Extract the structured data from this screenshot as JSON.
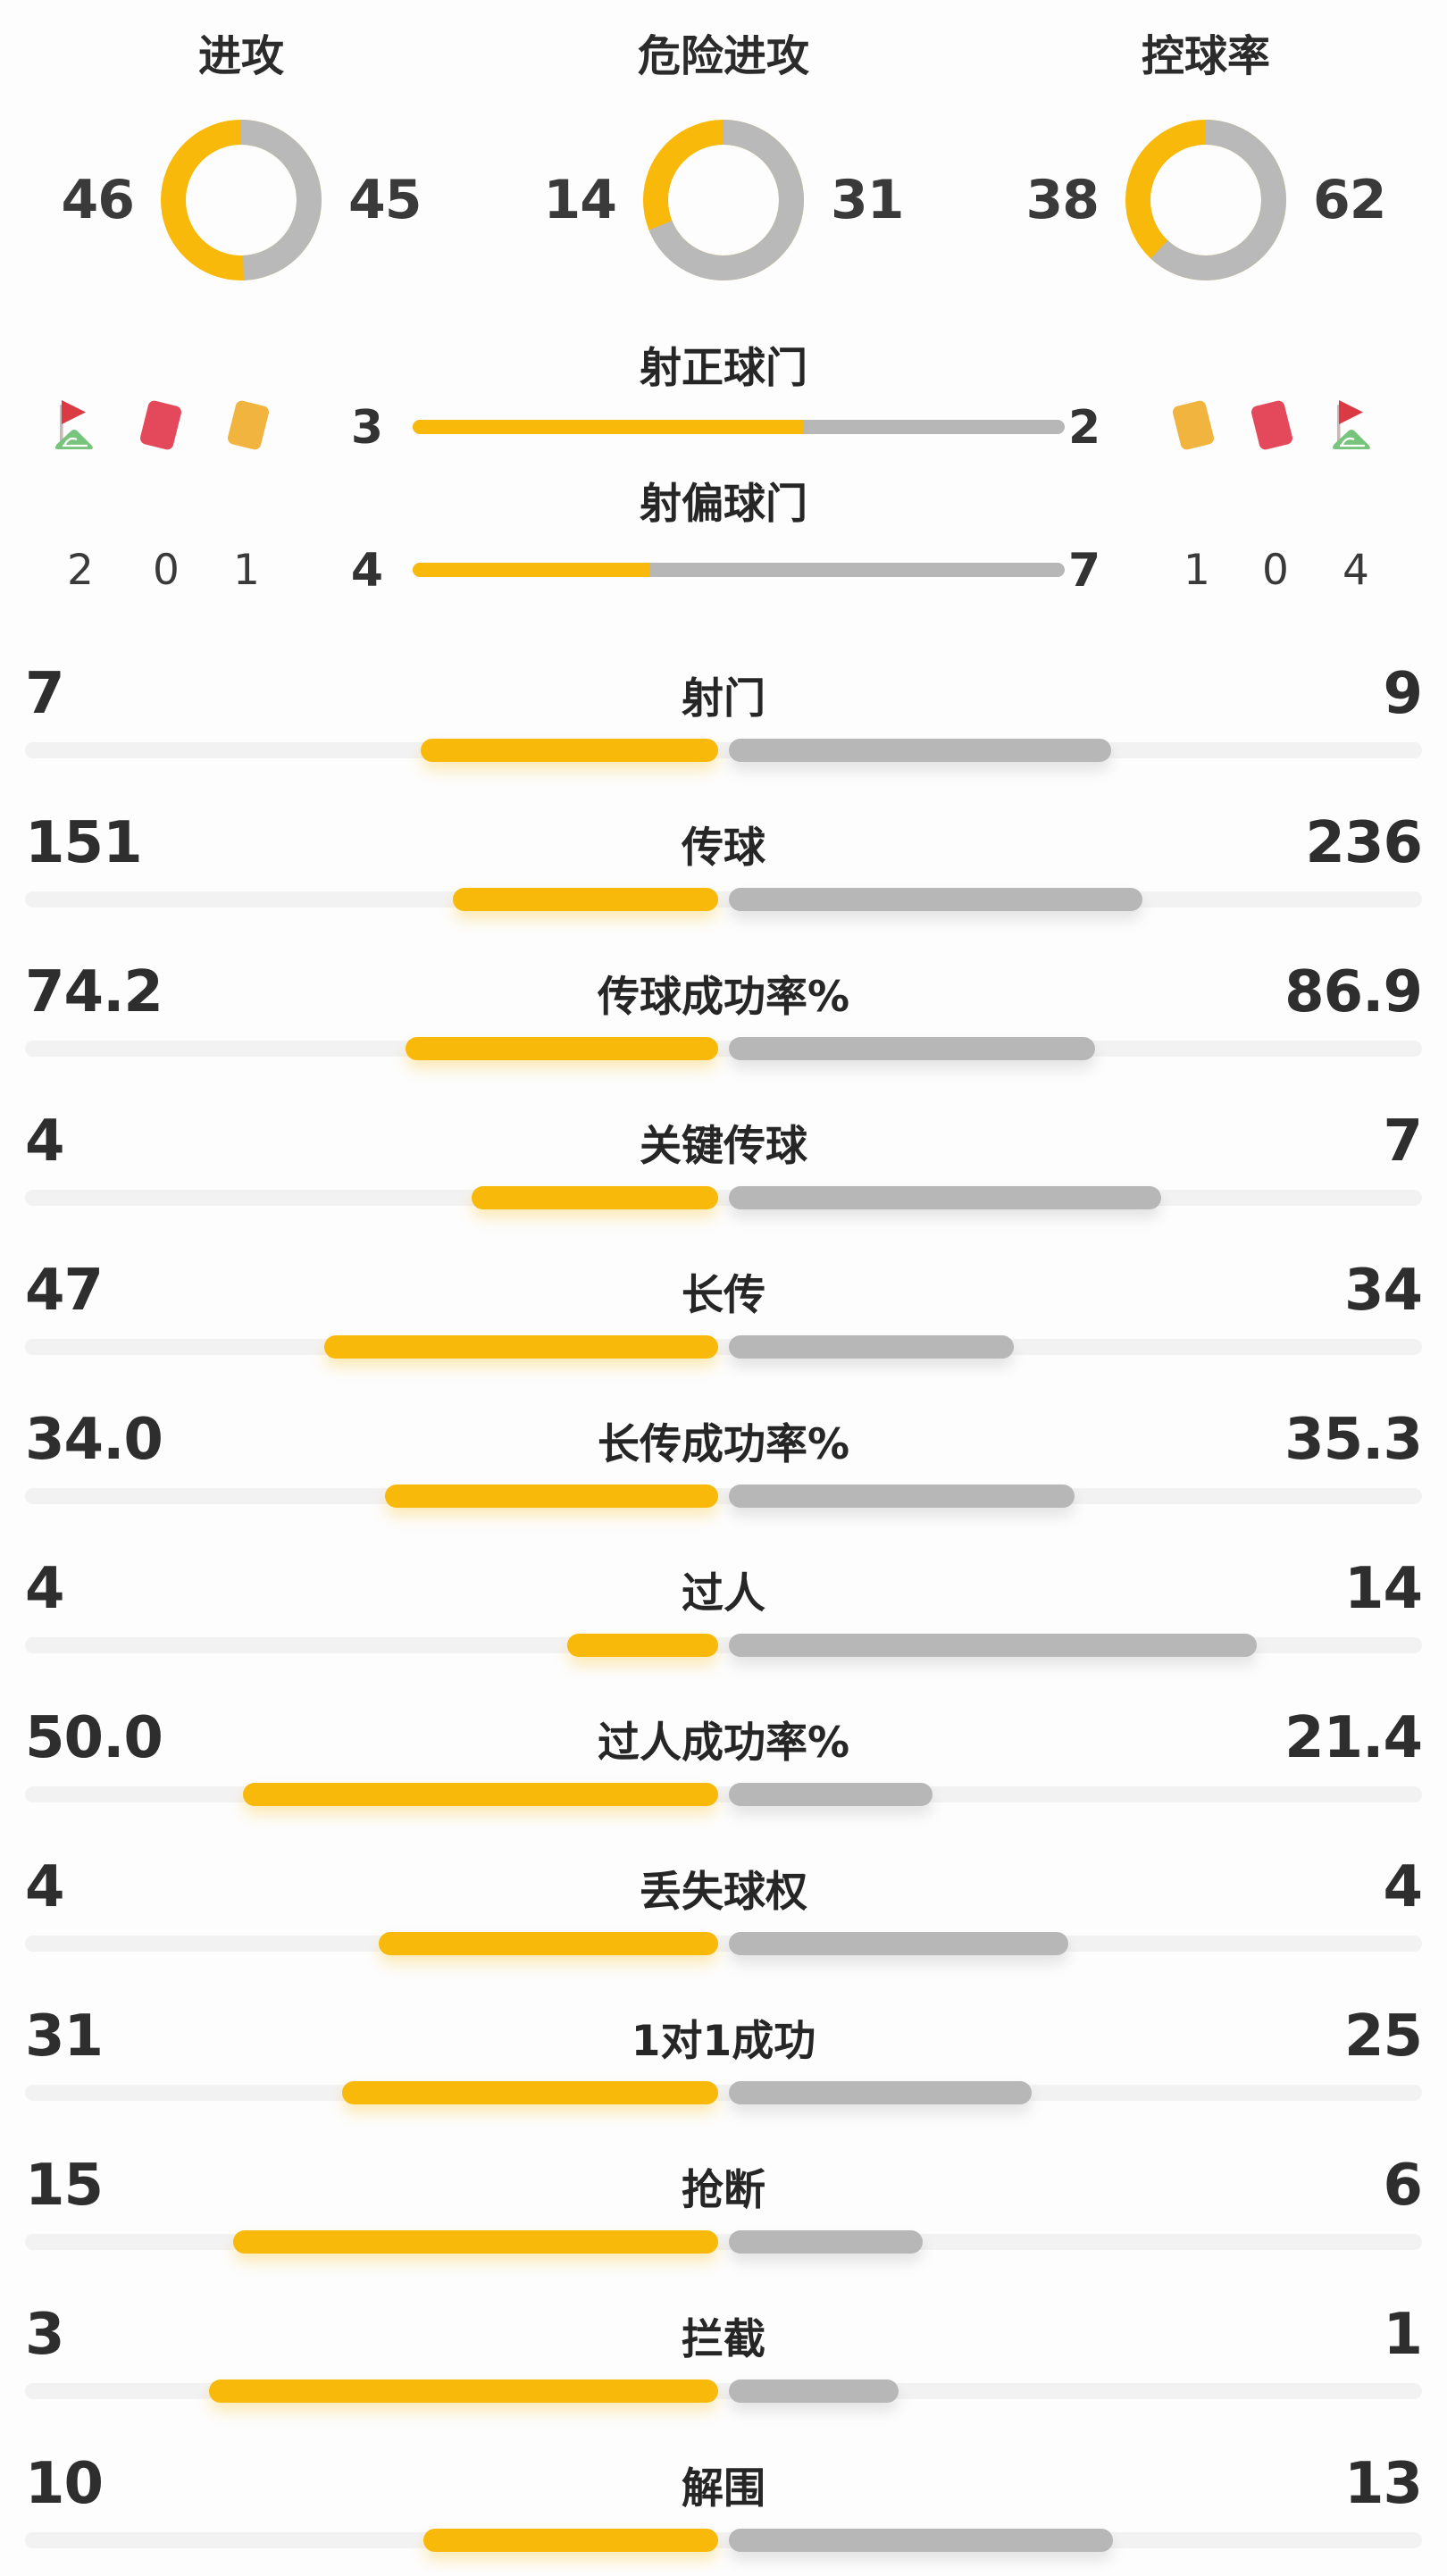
{
  "colors": {
    "home_accent": "#F8B90B",
    "away_gray": "#B7B7B7",
    "track_light": "#F2F2F3",
    "red_card": "#E4495B",
    "yellow_card": "#F1B43F",
    "flag_red": "#D93A43",
    "flag_green": "#77C47D",
    "text_dark": "#2E2E2E",
    "background": "#FDFDFD"
  },
  "donuts": [
    {
      "label": "进攻",
      "home": 46,
      "away": 45
    },
    {
      "label": "危险进攻",
      "home": 14,
      "away": 31
    },
    {
      "label": "控球率",
      "home": 38,
      "away": 62
    }
  ],
  "shot_rows": [
    {
      "label": "射正球门",
      "home": 3,
      "away": 2
    },
    {
      "label": "射偏球门",
      "home": 4,
      "away": 7
    }
  ],
  "discipline": {
    "home": {
      "icons": [
        "corner-flag",
        "red-card",
        "yellow-card"
      ],
      "counts": [
        2,
        0,
        1
      ]
    },
    "away": {
      "icons": [
        "yellow-card",
        "red-card",
        "corner-flag"
      ],
      "counts": [
        1,
        0,
        4
      ]
    }
  },
  "stats": [
    {
      "label": "射门",
      "home": 7,
      "away": 9
    },
    {
      "label": "传球",
      "home": 151,
      "away": 236
    },
    {
      "label": "传球成功率%",
      "home": "74.2",
      "away": "86.9"
    },
    {
      "label": "关键传球",
      "home": 4,
      "away": 7
    },
    {
      "label": "长传",
      "home": 47,
      "away": 34
    },
    {
      "label": "长传成功率%",
      "home": "34.0",
      "away": "35.3"
    },
    {
      "label": "过人",
      "home": 4,
      "away": 14
    },
    {
      "label": "过人成功率%",
      "home": "50.0",
      "away": "21.4"
    },
    {
      "label": "丢失球权",
      "home": 4,
      "away": 4
    },
    {
      "label": "1对1成功",
      "home": 31,
      "away": 25
    },
    {
      "label": "抢断",
      "home": 15,
      "away": 6
    },
    {
      "label": "拦截",
      "home": 3,
      "away": 1
    },
    {
      "label": "解围",
      "home": 10,
      "away": 13
    }
  ],
  "chart_data": [
    {
      "type": "pie",
      "title": "进攻",
      "labels": [
        "home",
        "away"
      ],
      "values": [
        46,
        45
      ],
      "colors": [
        "#F8B90B",
        "#B7B7B7"
      ],
      "style": "donut, home slice counter-clockwise from top"
    },
    {
      "type": "pie",
      "title": "危险进攻",
      "labels": [
        "home",
        "away"
      ],
      "values": [
        14,
        31
      ],
      "colors": [
        "#F8B90B",
        "#B7B7B7"
      ],
      "style": "donut, home slice counter-clockwise from top"
    },
    {
      "type": "pie",
      "title": "控球率",
      "labels": [
        "home",
        "away"
      ],
      "values": [
        38,
        62
      ],
      "colors": [
        "#F8B90B",
        "#B7B7B7"
      ],
      "style": "donut, home slice counter-clockwise from top"
    },
    {
      "type": "bar",
      "title": "比赛统计对比 (home vs away)",
      "categories": [
        "射正球门",
        "射偏球门",
        "射门",
        "传球",
        "传球成功率%",
        "关键传球",
        "长传",
        "长传成功率%",
        "过人",
        "过人成功率%",
        "丢失球权",
        "1对1成功",
        "抢断",
        "拦截",
        "解围"
      ],
      "series": [
        {
          "name": "home",
          "color": "#F8B90B",
          "values": [
            3,
            4,
            7,
            151,
            74.2,
            4,
            47,
            34.0,
            4,
            50.0,
            4,
            31,
            15,
            3,
            10
          ]
        },
        {
          "name": "away",
          "color": "#B7B7B7",
          "values": [
            2,
            7,
            9,
            236,
            86.9,
            7,
            34,
            35.3,
            14,
            21.4,
            4,
            25,
            6,
            1,
            13
          ]
        }
      ],
      "layout": "horizontal paired bars, each bar length = value/(home+away)",
      "extra": {
        "home_corners": 2,
        "home_red_cards": 0,
        "home_yellow_cards": 1,
        "away_yellow_cards": 1,
        "away_red_cards": 0,
        "away_corners": 4
      }
    }
  ]
}
